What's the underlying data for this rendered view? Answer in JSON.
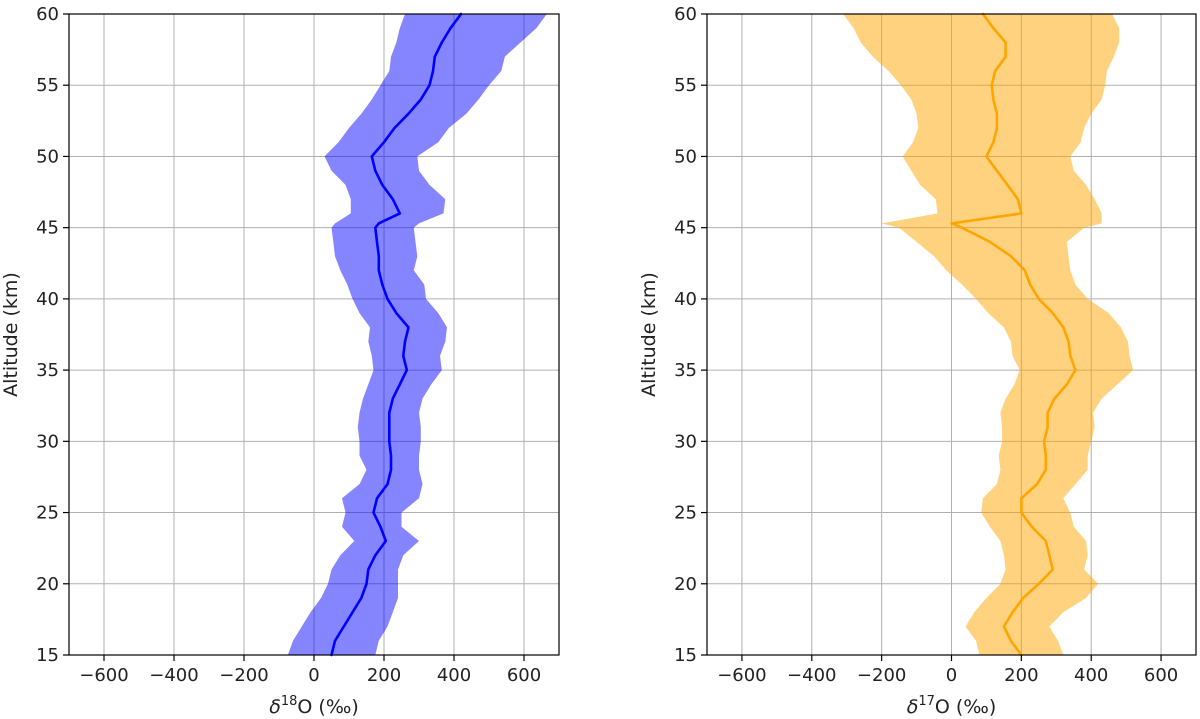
{
  "chart_data": [
    {
      "type": "area",
      "xlabel": {
        "prefix": "δ",
        "sup": "18",
        "suffix": "O (‰)"
      },
      "ylabel": "Altitude (km)",
      "xlim": [
        -700,
        700
      ],
      "ylim": [
        15,
        60
      ],
      "xticks": [
        -600,
        -400,
        -200,
        0,
        200,
        400,
        600
      ],
      "xtick_labels": [
        "−600",
        "−400",
        "−200",
        "0",
        "200",
        "400",
        "600"
      ],
      "yticks": [
        15,
        20,
        25,
        30,
        35,
        40,
        45,
        50,
        55,
        60
      ],
      "ytick_labels": [
        "15",
        "20",
        "25",
        "30",
        "35",
        "40",
        "45",
        "50",
        "55",
        "60"
      ],
      "grid": true,
      "series": [
        {
          "line_color": "#0000ff",
          "fill_color": "#0000ff",
          "fill_opacity": 0.48,
          "y": [
            15,
            16,
            17,
            18,
            19,
            20,
            21,
            22,
            23,
            24,
            25,
            26,
            27,
            28,
            29,
            30,
            31,
            32,
            33,
            34,
            35,
            36,
            37,
            38,
            39,
            40,
            41,
            42,
            43,
            44,
            45,
            45.3,
            46,
            47,
            48,
            49,
            50,
            51,
            52,
            53,
            54,
            55,
            56,
            57,
            58,
            59,
            60
          ],
          "x": [
            50,
            60,
            85,
            110,
            135,
            150,
            155,
            175,
            205,
            190,
            170,
            180,
            210,
            220,
            220,
            215,
            215,
            215,
            225,
            245,
            265,
            255,
            260,
            270,
            235,
            210,
            195,
            185,
            185,
            180,
            175,
            185,
            245,
            225,
            195,
            175,
            165,
            200,
            230,
            270,
            305,
            330,
            340,
            345,
            365,
            390,
            420
          ],
          "lower": [
            -75,
            -60,
            -35,
            -10,
            20,
            40,
            50,
            75,
            115,
            80,
            90,
            80,
            130,
            150,
            130,
            130,
            125,
            130,
            140,
            155,
            170,
            165,
            155,
            160,
            130,
            110,
            95,
            75,
            60,
            55,
            50,
            60,
            105,
            105,
            90,
            50,
            30,
            70,
            100,
            135,
            165,
            190,
            215,
            220,
            235,
            245,
            260
          ],
          "upper": [
            175,
            185,
            210,
            225,
            240,
            240,
            240,
            255,
            300,
            250,
            250,
            300,
            310,
            300,
            300,
            305,
            305,
            300,
            310,
            335,
            365,
            360,
            375,
            380,
            355,
            320,
            315,
            285,
            295,
            290,
            285,
            300,
            370,
            375,
            330,
            300,
            295,
            355,
            385,
            435,
            470,
            500,
            535,
            545,
            590,
            635,
            665
          ]
        }
      ]
    },
    {
      "type": "area",
      "xlabel": {
        "prefix": "δ",
        "sup": "17",
        "suffix": "O (‰)"
      },
      "ylabel": "Altitude (km)",
      "xlim": [
        -700,
        700
      ],
      "ylim": [
        15,
        60
      ],
      "xticks": [
        -600,
        -400,
        -200,
        0,
        200,
        400,
        600
      ],
      "xtick_labels": [
        "−600",
        "−400",
        "−200",
        "0",
        "200",
        "400",
        "600"
      ],
      "yticks": [
        15,
        20,
        25,
        30,
        35,
        40,
        45,
        50,
        55,
        60
      ],
      "ytick_labels": [
        "15",
        "20",
        "25",
        "30",
        "35",
        "40",
        "45",
        "50",
        "55",
        "60"
      ],
      "grid": true,
      "series": [
        {
          "line_color": "#ffa500",
          "fill_color": "#ffa500",
          "fill_opacity": 0.5,
          "y": [
            15,
            16,
            17,
            18,
            19,
            20,
            21,
            22,
            23,
            24,
            25,
            26,
            27,
            28,
            29,
            30,
            31,
            32,
            33,
            34,
            35,
            36,
            37,
            38,
            39,
            40,
            41,
            42,
            43,
            44,
            45,
            45.3,
            46,
            47,
            48,
            49,
            50,
            51,
            52,
            53,
            54,
            55,
            56,
            57,
            58,
            59,
            60
          ],
          "x": [
            200,
            170,
            150,
            175,
            205,
            250,
            290,
            280,
            270,
            230,
            200,
            200,
            245,
            270,
            270,
            265,
            275,
            275,
            295,
            330,
            355,
            340,
            335,
            320,
            290,
            250,
            225,
            210,
            170,
            110,
            30,
            0,
            200,
            190,
            160,
            130,
            100,
            120,
            130,
            130,
            120,
            115,
            125,
            155,
            155,
            120,
            90
          ],
          "lower": [
            80,
            70,
            40,
            65,
            100,
            140,
            155,
            150,
            140,
            110,
            85,
            90,
            130,
            140,
            135,
            145,
            145,
            140,
            155,
            180,
            195,
            175,
            170,
            150,
            105,
            70,
            30,
            -15,
            -50,
            -100,
            -150,
            -200,
            -40,
            -45,
            -90,
            -115,
            -140,
            -110,
            -95,
            -100,
            -115,
            -145,
            -180,
            -225,
            -260,
            -280,
            -310
          ],
          "upper": [
            320,
            305,
            280,
            320,
            385,
            420,
            380,
            390,
            385,
            350,
            340,
            320,
            355,
            390,
            390,
            400,
            410,
            405,
            430,
            475,
            520,
            510,
            505,
            485,
            450,
            390,
            355,
            340,
            335,
            330,
            380,
            430,
            430,
            410,
            385,
            350,
            340,
            370,
            380,
            400,
            430,
            440,
            445,
            465,
            480,
            480,
            460
          ]
        }
      ]
    }
  ]
}
